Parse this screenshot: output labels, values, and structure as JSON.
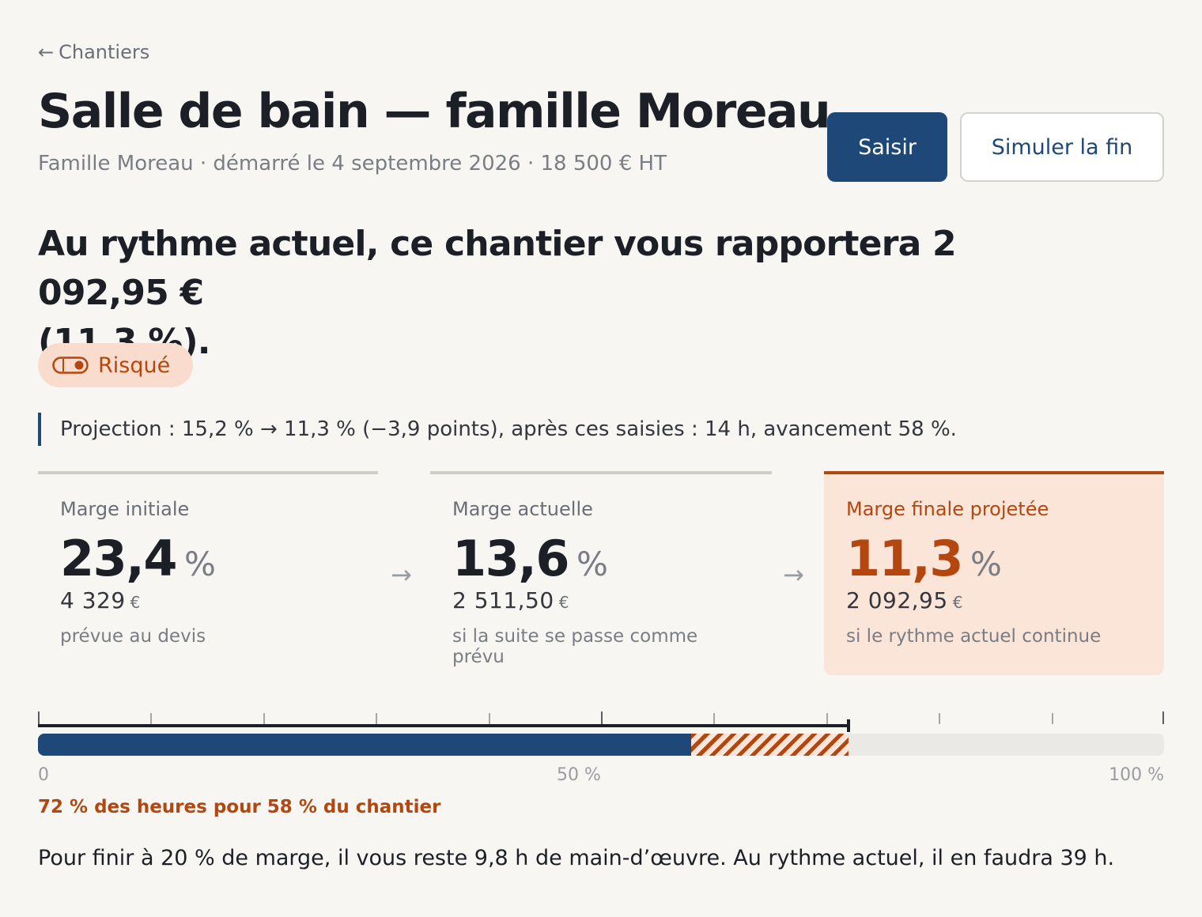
{
  "nav": {
    "back_label": "Chantiers"
  },
  "header": {
    "title": "Salle de bain — famille Moreau",
    "subtitle": "Famille Moreau · démarré le 4 septembre 2026 · 18 500 € HT",
    "primary_button": "Saisir",
    "secondary_button": "Simuler la fin"
  },
  "summary": {
    "headline_line1": "Au rythme actuel, ce chantier vous rapportera 2 092,95 €",
    "headline_line2": "(11,3 %).",
    "status_badge": "Risqué",
    "projection": "Projection : 15,2 % → 11,3 % (−3,9 points), après ces saisies : 14 h, avancement 58 %."
  },
  "margins": [
    {
      "label": "Marge initiale",
      "pct": "23,4",
      "unit": "%",
      "amount": "4 329",
      "currency": "€",
      "note": "prévue au devis"
    },
    {
      "label": "Marge actuelle",
      "pct": "13,6",
      "unit": "%",
      "amount": "2 511,50",
      "currency": "€",
      "note": "si la suite se passe comme prévu"
    },
    {
      "label": "Marge finale projetée",
      "pct": "11,3",
      "unit": "%",
      "amount": "2 092,95",
      "currency": "€",
      "note": "si le rythme actuel continue"
    }
  ],
  "arrow_glyph": "→",
  "progress": {
    "hours_used_pct": 72,
    "completion_pct": 58,
    "axis_labels": [
      "0",
      "50 %",
      "100 %"
    ],
    "caption": "72 % des heures pour 58 % du chantier"
  },
  "footer_note": "Pour finir à 20 % de marge, il vous reste 9,8 h de main-d’œuvre. Au rythme actuel, il en faudra 39 h.",
  "colors": {
    "primary": "#1e4878",
    "risk": "#b3470f",
    "risk_bg": "#fbe4d8",
    "background": "#f7f6f3"
  },
  "icons": {
    "badge": "toggle-icon"
  }
}
